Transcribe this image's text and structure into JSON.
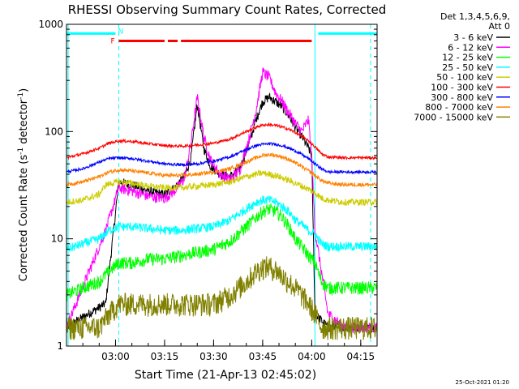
{
  "chart_data": {
    "type": "line",
    "title": "RHESSI Observing Summary Count Rates, Corrected",
    "xlabel": "Start Time (21-Apr-13 02:45:02)",
    "ylabel_main": "Corrected Count Rate (s",
    "ylabel_sup1": "-1",
    "ylabel_mid": " detector",
    "ylabel_sup2": "-1",
    "ylabel_end": ")",
    "yscale": "log",
    "ylim": [
      1,
      1000
    ],
    "xlim_minutes": [
      0,
      95
    ],
    "x_ticks": [
      {
        "label": "03:00",
        "minutes": 15
      },
      {
        "label": "03:15",
        "minutes": 30
      },
      {
        "label": "03:30",
        "minutes": 45
      },
      {
        "label": "03:45",
        "minutes": 60
      },
      {
        "label": "04:00",
        "minutes": 75
      },
      {
        "label": "04:15",
        "minutes": 90
      }
    ],
    "y_ticks": [
      {
        "label": "1",
        "value": 1
      },
      {
        "label": "10",
        "value": 10
      },
      {
        "label": "100",
        "value": 100
      },
      {
        "label": "1000",
        "value": 1000
      }
    ],
    "legend_header": [
      "Det 1,3,4,5,6,9,",
      "Att 0"
    ],
    "legend_position": "outside-right",
    "series": [
      {
        "name": "3 - 6 keV",
        "color": "#000000",
        "x": [
          0,
          12,
          16,
          20,
          25,
          30,
          33,
          36,
          38,
          40,
          42,
          44,
          47,
          50,
          53,
          56,
          58,
          60,
          62,
          64,
          66,
          68,
          70,
          72,
          74,
          75,
          76,
          80,
          85,
          90,
          95
        ],
        "y": [
          1.5,
          2.5,
          34,
          32,
          28,
          26,
          30,
          38,
          55,
          180,
          70,
          48,
          40,
          38,
          45,
          80,
          130,
          190,
          210,
          190,
          170,
          140,
          110,
          90,
          70,
          60,
          2,
          1.5,
          1.5,
          1.5,
          1.5
        ]
      },
      {
        "name": "6 - 12 keV",
        "color": "#ff00ff",
        "x": [
          0,
          12,
          16,
          20,
          25,
          30,
          33,
          36,
          38,
          40,
          42,
          44,
          47,
          50,
          53,
          56,
          58,
          60,
          62,
          64,
          66,
          68,
          70,
          72,
          74,
          75,
          76,
          80,
          85,
          90,
          95
        ],
        "y": [
          1.5,
          12,
          30,
          28,
          25,
          24,
          28,
          36,
          75,
          210,
          90,
          55,
          40,
          36,
          44,
          90,
          160,
          360,
          320,
          230,
          190,
          150,
          120,
          100,
          130,
          60,
          12,
          2,
          1.5,
          1.5,
          1.5
        ]
      },
      {
        "name": "12 - 25 keV",
        "color": "#00ff00",
        "x": [
          0,
          5,
          10,
          13,
          16,
          20,
          25,
          30,
          35,
          40,
          45,
          50,
          55,
          58,
          60,
          62,
          64,
          66,
          68,
          70,
          72,
          74,
          76,
          78,
          80,
          85,
          90,
          95
        ],
        "y": [
          3,
          3.5,
          4,
          5,
          6,
          6,
          6.5,
          6.5,
          7,
          7.5,
          8,
          9.5,
          13,
          16,
          18,
          19,
          18,
          16,
          13,
          10,
          8.5,
          7,
          6,
          4,
          3.5,
          3.5,
          3.5,
          3.5
        ]
      },
      {
        "name": "25 - 50 keV",
        "color": "#00ffff",
        "x": [
          0,
          5,
          10,
          13,
          16,
          20,
          25,
          30,
          35,
          40,
          45,
          50,
          55,
          58,
          60,
          62,
          64,
          66,
          68,
          70,
          72,
          74,
          76,
          78,
          80,
          85,
          90,
          95
        ],
        "y": [
          8,
          9,
          10,
          12,
          13,
          13,
          12.5,
          12,
          12,
          12.5,
          13,
          15,
          19,
          22,
          23,
          23,
          22,
          20,
          18,
          15,
          13.5,
          12,
          11,
          9,
          8.5,
          8.5,
          8.5,
          8.5
        ]
      },
      {
        "name": "50 - 100 keV",
        "color": "#cccc00",
        "x": [
          0,
          5,
          10,
          12,
          16,
          20,
          25,
          30,
          35,
          40,
          45,
          50,
          55,
          58,
          60,
          62,
          64,
          66,
          68,
          70,
          72,
          74,
          76,
          78,
          80,
          85,
          90,
          95
        ],
        "y": [
          22,
          23,
          26,
          32,
          34,
          33,
          31,
          30,
          30,
          31,
          32,
          34,
          38,
          40,
          41,
          40,
          39,
          37,
          35,
          33,
          31,
          29,
          27,
          24,
          23,
          22,
          22,
          22
        ]
      },
      {
        "name": "100 - 300 keV",
        "color": "#ff0000",
        "x": [
          0,
          5,
          10,
          13,
          16,
          20,
          25,
          30,
          35,
          40,
          45,
          50,
          55,
          58,
          60,
          62,
          64,
          66,
          68,
          70,
          72,
          74,
          76,
          78,
          80,
          85,
          90,
          95
        ],
        "y": [
          57,
          62,
          70,
          78,
          82,
          81,
          77,
          74,
          73,
          75,
          78,
          85,
          100,
          110,
          115,
          116,
          114,
          110,
          105,
          98,
          90,
          82,
          72,
          62,
          58,
          57,
          57,
          57
        ]
      },
      {
        "name": "300 - 800 keV",
        "color": "#0000ff",
        "x": [
          0,
          5,
          10,
          13,
          16,
          20,
          25,
          30,
          35,
          40,
          45,
          50,
          55,
          58,
          60,
          62,
          64,
          66,
          68,
          70,
          72,
          74,
          76,
          78,
          80,
          85,
          90,
          95
        ],
        "y": [
          42,
          45,
          52,
          56,
          57,
          56,
          53,
          50,
          49,
          50,
          53,
          58,
          68,
          74,
          76,
          77,
          76,
          74,
          70,
          66,
          61,
          56,
          50,
          45,
          42,
          42,
          42,
          42
        ]
      },
      {
        "name": "800 - 7000 keV",
        "color": "#ff8000",
        "x": [
          0,
          5,
          10,
          13,
          16,
          20,
          25,
          30,
          35,
          40,
          45,
          50,
          55,
          58,
          60,
          62,
          64,
          66,
          68,
          70,
          72,
          74,
          76,
          78,
          80,
          85,
          90,
          95
        ],
        "y": [
          32,
          34,
          38,
          42,
          44,
          43,
          41,
          39,
          39,
          40,
          42,
          45,
          52,
          57,
          60,
          61,
          60,
          58,
          55,
          51,
          47,
          43,
          39,
          35,
          33,
          32,
          32,
          32
        ]
      },
      {
        "name": "7000 - 15000 keV",
        "color": "#808000",
        "x": [
          0,
          5,
          10,
          13,
          16,
          20,
          25,
          30,
          35,
          40,
          45,
          50,
          55,
          58,
          60,
          62,
          64,
          66,
          68,
          70,
          72,
          74,
          76,
          78,
          80,
          85,
          90,
          95
        ],
        "y": [
          1.5,
          1.5,
          1.5,
          2,
          2.5,
          2.5,
          2.5,
          2.5,
          2.5,
          2.5,
          2.5,
          3,
          4,
          5,
          5.5,
          5.5,
          5.2,
          4.5,
          4,
          3.5,
          3,
          2.5,
          2,
          1.5,
          1.5,
          1.5,
          1.5,
          1.5
        ]
      }
    ],
    "flags": [
      {
        "label": "F",
        "color": "#ff0000",
        "segments_minutes": [
          [
            16,
            30
          ],
          [
            31,
            34
          ],
          [
            35,
            75
          ]
        ],
        "value": 700
      },
      {
        "label": "N",
        "color": "#00ffff",
        "segments_minutes": [
          [
            0,
            15
          ],
          [
            77,
            95
          ]
        ],
        "value": 820
      }
    ],
    "vertical_markers_minutes": {
      "solid": [
        0,
        76
      ],
      "dashed": [
        16,
        93
      ]
    },
    "footer_timestamp": "25-Oct-2021 01:20"
  }
}
